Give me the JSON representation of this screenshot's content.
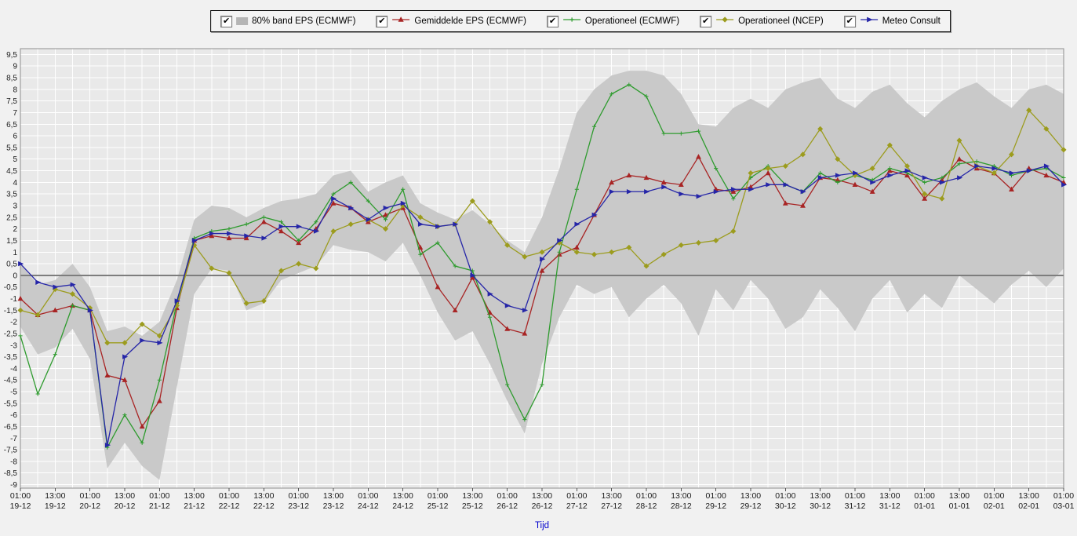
{
  "colors": {
    "page_bg": "#f1f1f1",
    "plot_bg": "#e9e9e9",
    "grid": "#ffffff",
    "plot_border": "#8f8f8f",
    "zero_line": "#7d7d7d",
    "axis_text": "#1a1a1a",
    "band_fill": "#c9c9c9",
    "x_label_color": "#0000cc"
  },
  "legend": {
    "check_glyph": "✔",
    "items": [
      {
        "label": "80% band EPS (ECMWF)",
        "color": "#b5b5b5",
        "type": "band",
        "checked": true
      },
      {
        "label": "Gemiddelde EPS (ECMWF)",
        "color": "#a82424",
        "type": "line",
        "marker": "triangle",
        "checked": true
      },
      {
        "label": "Operationeel (ECMWF)",
        "color": "#2e9b2e",
        "type": "line",
        "marker": "plus",
        "checked": true
      },
      {
        "label": "Operationeel (NCEP)",
        "color": "#9c9c1e",
        "type": "line",
        "marker": "diamond",
        "checked": true
      },
      {
        "label": "Meteo Consult",
        "color": "#2626a8",
        "type": "line",
        "marker": "arrow",
        "checked": true
      }
    ]
  },
  "axes": {
    "x_label": "Tijd",
    "ylim": [
      -9,
      9.5
    ],
    "y_tick_labels": [
      "9,5",
      "9",
      "8,5",
      "8",
      "7,5",
      "7",
      "6,5",
      "6",
      "5,5",
      "5",
      "4,5",
      "4",
      "3,5",
      "3",
      "2,5",
      "2",
      "1,5",
      "1",
      "0,5",
      "0",
      "-0,5",
      "-1",
      "-1,5",
      "-2",
      "-2,5",
      "-3",
      "-3,5",
      "-4",
      "-4,5",
      "-5",
      "-5,5",
      "-6",
      "-6,5",
      "-7",
      "-7,5",
      "-8",
      "-8,5",
      "-9"
    ]
  },
  "chart_data": {
    "type": "line",
    "title": "",
    "xlabel": "Tijd",
    "ylabel": "",
    "ylim": [
      -9,
      9.5
    ],
    "grid": true,
    "legend_position": "top",
    "x_step_hours": 6,
    "x_tick_labels": [
      {
        "time": "01:00",
        "date": "19-12"
      },
      {
        "time": "13:00",
        "date": "19-12"
      },
      {
        "time": "01:00",
        "date": "20-12"
      },
      {
        "time": "13:00",
        "date": "20-12"
      },
      {
        "time": "01:00",
        "date": "21-12"
      },
      {
        "time": "13:00",
        "date": "21-12"
      },
      {
        "time": "01:00",
        "date": "22-12"
      },
      {
        "time": "13:00",
        "date": "22-12"
      },
      {
        "time": "01:00",
        "date": "23-12"
      },
      {
        "time": "13:00",
        "date": "23-12"
      },
      {
        "time": "01:00",
        "date": "24-12"
      },
      {
        "time": "13:00",
        "date": "24-12"
      },
      {
        "time": "01:00",
        "date": "25-12"
      },
      {
        "time": "13:00",
        "date": "25-12"
      },
      {
        "time": "01:00",
        "date": "26-12"
      },
      {
        "time": "13:00",
        "date": "26-12"
      },
      {
        "time": "01:00",
        "date": "27-12"
      },
      {
        "time": "13:00",
        "date": "27-12"
      },
      {
        "time": "01:00",
        "date": "28-12"
      },
      {
        "time": "13:00",
        "date": "28-12"
      },
      {
        "time": "01:00",
        "date": "29-12"
      },
      {
        "time": "13:00",
        "date": "29-12"
      },
      {
        "time": "01:00",
        "date": "30-12"
      },
      {
        "time": "13:00",
        "date": "30-12"
      },
      {
        "time": "01:00",
        "date": "31-12"
      },
      {
        "time": "13:00",
        "date": "31-12"
      },
      {
        "time": "01:00",
        "date": "01-01"
      },
      {
        "time": "13:00",
        "date": "01-01"
      },
      {
        "time": "01:00",
        "date": "02-01"
      },
      {
        "time": "13:00",
        "date": "02-01"
      },
      {
        "time": "01:00",
        "date": "03-01"
      }
    ],
    "band": {
      "name": "80% band EPS (ECMWF)",
      "color": "#c9c9c9",
      "lower": [
        -2.2,
        -3.4,
        -3.1,
        -2.3,
        -3.6,
        -8.3,
        -7.2,
        -8.2,
        -8.8,
        -4.8,
        -0.8,
        0.3,
        0.2,
        -1.5,
        -1.2,
        -0.2,
        0.1,
        0.4,
        1.3,
        1.1,
        1.0,
        0.6,
        1.4,
        0.0,
        -1.6,
        -2.8,
        -2.4,
        -3.8,
        -5.4,
        -6.8,
        -3.8,
        -1.8,
        -0.4,
        -0.8,
        -0.5,
        -1.8,
        -1.0,
        -0.4,
        -1.2,
        -2.6,
        -0.6,
        -1.5,
        -0.2,
        -1.0,
        -2.3,
        -1.8,
        -0.6,
        -1.4,
        -2.4,
        -1.0,
        -0.2,
        -1.6,
        -0.8,
        -1.4,
        0.0,
        -0.6,
        -1.2,
        -0.4,
        0.2,
        -0.5,
        0.3
      ],
      "upper": [
        0.5,
        -0.4,
        -0.2,
        0.5,
        -0.5,
        -2.4,
        -2.2,
        -2.6,
        -2.0,
        -0.2,
        2.4,
        3.0,
        2.9,
        2.5,
        2.9,
        3.2,
        3.3,
        3.5,
        4.3,
        4.5,
        3.6,
        4.0,
        4.3,
        3.1,
        2.7,
        2.4,
        2.8,
        2.2,
        1.5,
        1.0,
        2.5,
        4.6,
        7.0,
        8.0,
        8.6,
        8.8,
        8.8,
        8.6,
        7.8,
        6.5,
        6.4,
        7.2,
        7.6,
        7.2,
        8.0,
        8.3,
        8.5,
        7.6,
        7.2,
        7.9,
        8.2,
        7.4,
        6.8,
        7.5,
        8.0,
        8.3,
        7.7,
        7.2,
        8.0,
        8.2,
        7.8
      ]
    },
    "series": [
      {
        "name": "Gemiddelde EPS (ECMWF)",
        "color": "#a82424",
        "marker": "triangle",
        "values": [
          -1.0,
          -1.7,
          -1.5,
          -1.3,
          -1.5,
          -4.3,
          -4.5,
          -6.5,
          -5.4,
          -1.4,
          1.5,
          1.7,
          1.6,
          1.6,
          2.3,
          1.9,
          1.4,
          2.0,
          3.1,
          2.9,
          2.3,
          2.6,
          2.9,
          1.2,
          -0.5,
          -1.5,
          -0.1,
          -1.6,
          -2.3,
          -2.5,
          0.2,
          0.9,
          1.2,
          2.6,
          4.0,
          4.3,
          4.2,
          4.0,
          3.9,
          5.1,
          3.7,
          3.6,
          3.8,
          4.4,
          3.1,
          3.0,
          4.2,
          4.1,
          3.9,
          3.6,
          4.5,
          4.3,
          3.3,
          4.1,
          5.0,
          4.6,
          4.4,
          3.7,
          4.6,
          4.3,
          4.0
        ]
      },
      {
        "name": "Operationeel (ECMWF)",
        "color": "#2e9b2e",
        "marker": "plus",
        "values": [
          -2.6,
          -5.1,
          -3.4,
          -1.3,
          -1.5,
          -7.4,
          -6.0,
          -7.2,
          -4.5,
          -1.2,
          1.6,
          1.9,
          2.0,
          2.2,
          2.5,
          2.3,
          1.5,
          2.3,
          3.5,
          4.0,
          3.2,
          2.4,
          3.7,
          0.9,
          1.4,
          0.4,
          0.2,
          -1.8,
          -4.7,
          -6.2,
          -4.7,
          1.0,
          3.7,
          6.4,
          7.8,
          8.2,
          7.7,
          6.1,
          6.1,
          6.2,
          4.6,
          3.3,
          4.2,
          4.7,
          3.9,
          3.6,
          4.4,
          4.0,
          4.3,
          4.1,
          4.6,
          4.4,
          4.0,
          4.2,
          4.8,
          4.9,
          4.7,
          4.3,
          4.5,
          4.6,
          4.2
        ]
      },
      {
        "name": "Operationeel (NCEP)",
        "color": "#9c9c1e",
        "marker": "diamond",
        "values": [
          -1.5,
          -1.7,
          -0.6,
          -0.8,
          -1.4,
          -2.9,
          -2.9,
          -2.1,
          -2.6,
          -1.3,
          1.3,
          0.3,
          0.1,
          -1.2,
          -1.1,
          0.2,
          0.5,
          0.3,
          1.9,
          2.2,
          2.4,
          2.0,
          3.0,
          2.5,
          2.1,
          2.2,
          3.2,
          2.3,
          1.3,
          0.8,
          1.0,
          1.4,
          1.0,
          0.9,
          1.0,
          1.2,
          0.4,
          0.9,
          1.3,
          1.4,
          1.5,
          1.9,
          4.4,
          4.6,
          4.7,
          5.2,
          6.3,
          5.0,
          4.3,
          4.6,
          5.6,
          4.7,
          3.5,
          3.3,
          5.8,
          4.7,
          4.4,
          5.2,
          7.1,
          6.3,
          5.4
        ]
      },
      {
        "name": "Meteo Consult",
        "color": "#2626a8",
        "marker": "arrow",
        "values": [
          0.5,
          -0.3,
          -0.5,
          -0.4,
          -1.5,
          -7.3,
          -3.5,
          -2.8,
          -2.9,
          -1.1,
          1.5,
          1.8,
          1.8,
          1.7,
          1.6,
          2.1,
          2.1,
          1.9,
          3.3,
          2.9,
          2.4,
          2.9,
          3.1,
          2.2,
          2.1,
          2.2,
          0.0,
          -0.8,
          -1.3,
          -1.5,
          0.7,
          1.5,
          2.2,
          2.6,
          3.6,
          3.6,
          3.6,
          3.8,
          3.5,
          3.4,
          3.6,
          3.7,
          3.7,
          3.9,
          3.9,
          3.6,
          4.2,
          4.3,
          4.4,
          4.0,
          4.3,
          4.5,
          4.2,
          4.0,
          4.2,
          4.7,
          4.6,
          4.4,
          4.5,
          4.7,
          3.9
        ]
      }
    ]
  }
}
